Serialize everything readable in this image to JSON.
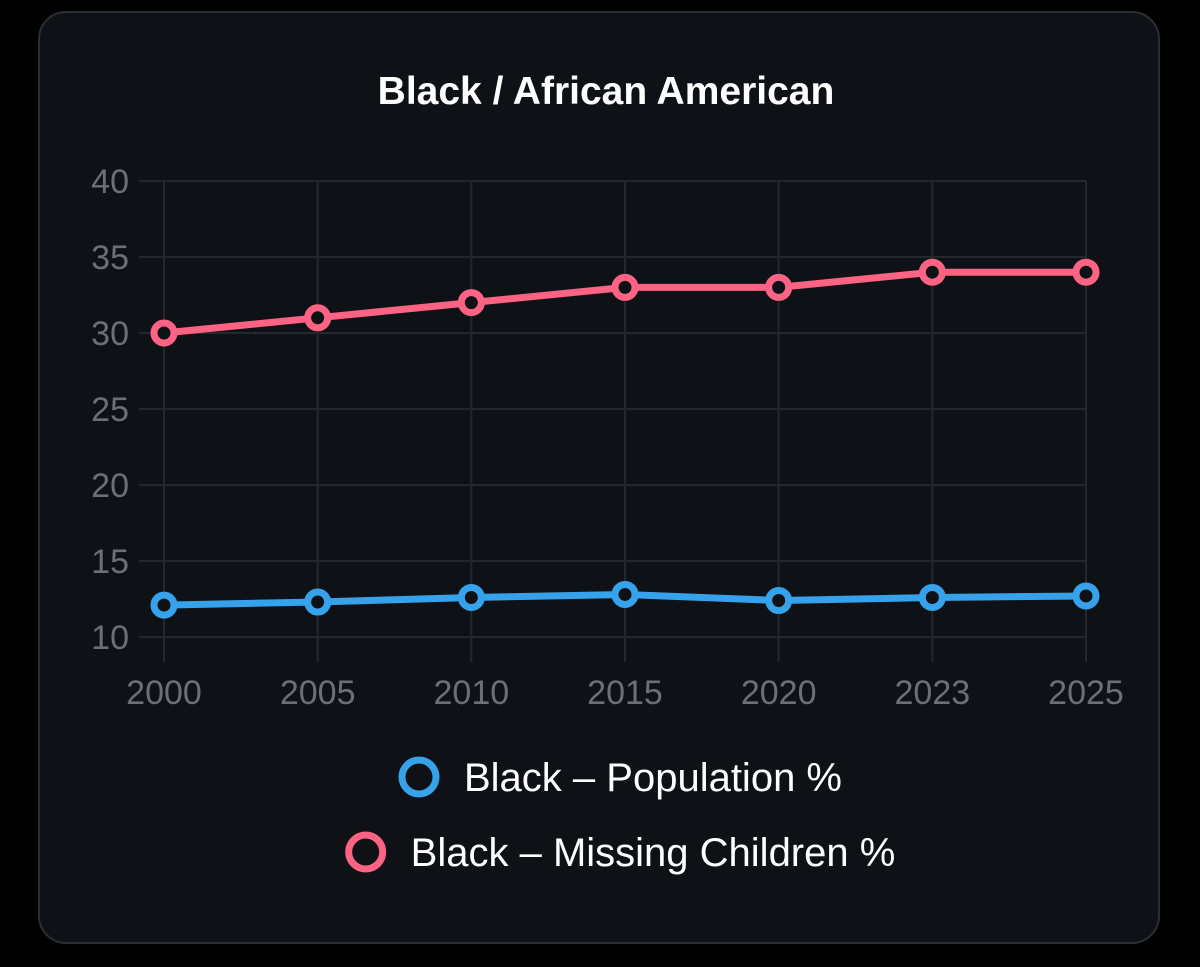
{
  "chart_data": {
    "type": "line",
    "title": "Black / African American",
    "xlabel": "",
    "ylabel": "",
    "categories": [
      "2000",
      "2005",
      "2010",
      "2015",
      "2020",
      "2023",
      "2025"
    ],
    "ylim": [
      10,
      40
    ],
    "yticks": [
      "10",
      "15",
      "20",
      "25",
      "30",
      "35",
      "40"
    ],
    "grid": true,
    "legend_position": "bottom-center",
    "series": [
      {
        "name": "Black – Population %",
        "color": "#36a2eb",
        "values": [
          12.1,
          12.3,
          12.6,
          12.8,
          12.4,
          12.6,
          12.7
        ]
      },
      {
        "name": "Black – Missing Children %",
        "color": "#ff6384",
        "values": [
          30,
          31,
          32,
          33,
          33,
          34,
          34
        ]
      }
    ]
  },
  "colors": {
    "page_background": "#000000",
    "card_background": "#0e1216",
    "card_border": "#2b2f33",
    "grid": "#23282d",
    "axis_text": "#6b7075",
    "title_text": "#ffffff",
    "legend_text": "#ffffff"
  }
}
